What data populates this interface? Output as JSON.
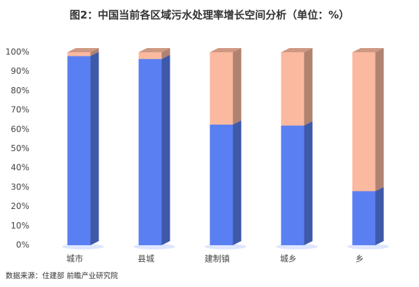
{
  "chart_data": {
    "type": "bar3d_stacked",
    "title": "图2：中国当前各区域污水处理率增长空间分析（单位：%）",
    "source": "数据来源：住建部 前瞻产业研究院",
    "categories": [
      "城市",
      "县城",
      "建制镇",
      "城乡",
      "乡"
    ],
    "series": [
      {
        "color": "#5a7ff2",
        "values": [
          98,
          96.5,
          62.5,
          62,
          28
        ]
      },
      {
        "color": "#fbb9a0",
        "values": [
          2,
          3.5,
          37.5,
          38,
          72
        ]
      }
    ],
    "ylim": [
      0,
      100
    ],
    "yticks": [
      {
        "value": 0,
        "label": "0%"
      },
      {
        "value": 10,
        "label": "10%"
      },
      {
        "value": 20,
        "label": "20%"
      },
      {
        "value": 30,
        "label": "30%"
      },
      {
        "value": 40,
        "label": "40%"
      },
      {
        "value": 50,
        "label": "50%"
      },
      {
        "value": 60,
        "label": "60%"
      },
      {
        "value": 70,
        "label": "70%"
      },
      {
        "value": 80,
        "label": "80%"
      },
      {
        "value": 90,
        "label": "90%"
      },
      {
        "value": 100,
        "label": "100%"
      }
    ]
  }
}
